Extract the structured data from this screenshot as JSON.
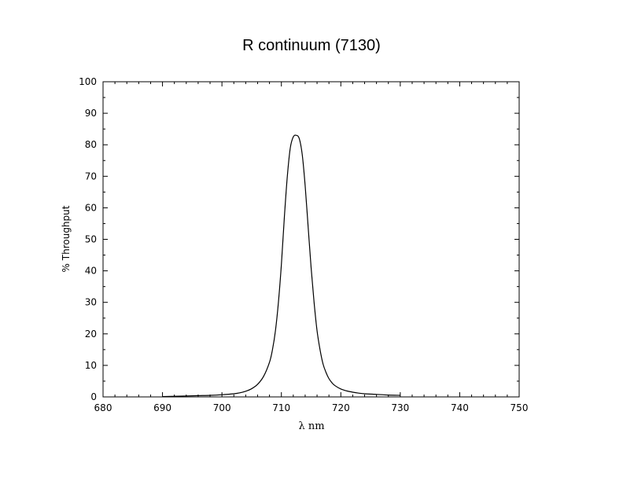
{
  "chart_data": {
    "type": "line",
    "title": "R continuum (7130)",
    "xlabel": "λ nm",
    "ylabel": "% Throughput",
    "xlim": [
      680,
      750
    ],
    "ylim": [
      0,
      100
    ],
    "x_ticks": [
      680,
      690,
      700,
      710,
      720,
      730,
      740,
      750
    ],
    "y_ticks": [
      0,
      10,
      20,
      30,
      40,
      50,
      60,
      70,
      80,
      90,
      100
    ],
    "grid": false,
    "legend": "none",
    "series": [
      {
        "color": "#000000",
        "x": [
          690,
          692,
          694,
          696,
          698,
          700,
          702,
          703,
          704,
          705,
          706,
          707,
          708,
          708.5,
          709,
          709.5,
          710,
          710.5,
          711,
          711.5,
          712,
          712.5,
          713,
          713.5,
          714,
          714.5,
          715,
          715.5,
          716,
          716.5,
          717,
          717.5,
          718,
          718.5,
          719,
          720,
          721,
          722,
          723,
          724,
          726,
          728,
          730
        ],
        "y": [
          0.1,
          0.2,
          0.3,
          0.4,
          0.5,
          0.7,
          1.0,
          1.3,
          1.8,
          2.6,
          4.0,
          6.5,
          11.0,
          15.0,
          21.0,
          30.0,
          42.0,
          57.0,
          70.0,
          79.0,
          82.5,
          83.0,
          82.0,
          77.0,
          67.0,
          54.0,
          41.0,
          30.0,
          21.0,
          15.0,
          10.5,
          7.8,
          5.8,
          4.5,
          3.6,
          2.5,
          1.9,
          1.5,
          1.2,
          1.0,
          0.8,
          0.6,
          0.5
        ]
      }
    ]
  }
}
